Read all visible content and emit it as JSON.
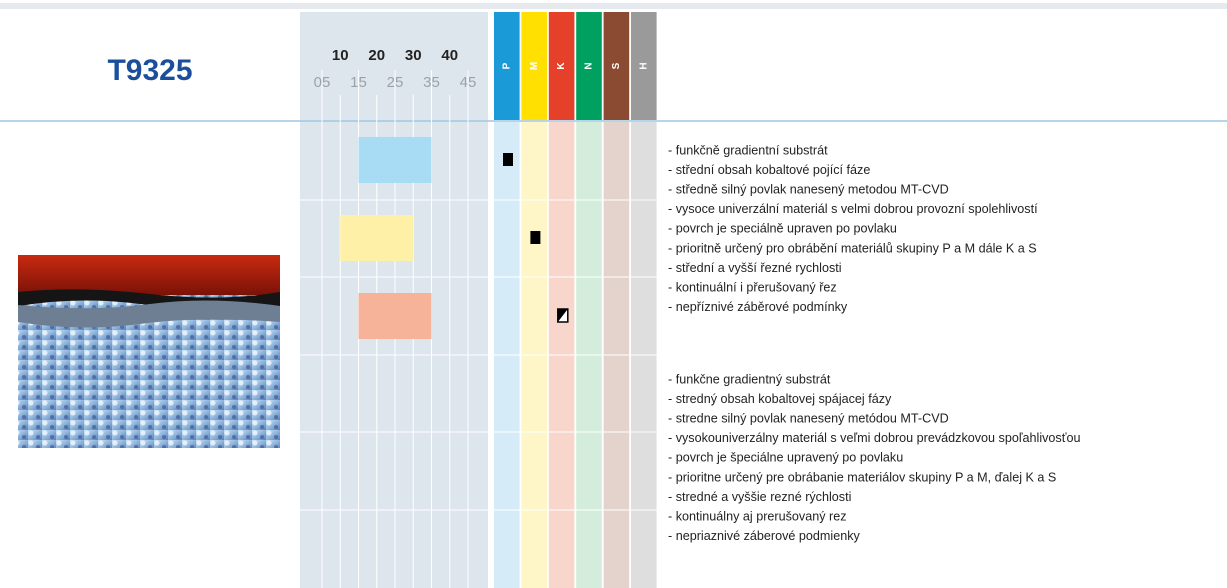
{
  "header": {
    "grade": "T9325",
    "scale": {
      "major": [
        10,
        20,
        30,
        40
      ],
      "minor": [
        {
          "value": 5,
          "label": "05"
        },
        15,
        25,
        35,
        45
      ]
    },
    "iso": [
      {
        "label": "P",
        "color": "#1a9ad6",
        "tint": "#d5ebf8"
      },
      {
        "label": "M",
        "color": "#ffe000",
        "tint": "#fff6c8"
      },
      {
        "label": "K",
        "color": "#e5402a",
        "tint": "#f9d6cc"
      },
      {
        "label": "N",
        "color": "#00a160",
        "tint": "#d3ecdc"
      },
      {
        "label": "S",
        "color": "#8b4a32",
        "tint": "#e4d3cc"
      },
      {
        "label": "H",
        "color": "#9a9a9a",
        "tint": "#dedede"
      }
    ]
  },
  "ranges": [
    {
      "iso": 0,
      "from": 15,
      "to": 35,
      "color": "#a8dcf4",
      "marker": "full"
    },
    {
      "iso": 1,
      "from": 10,
      "to": 30,
      "color": "#fff0a8",
      "marker": "full"
    },
    {
      "iso": 2,
      "from": 15,
      "to": 35,
      "color": "#f6b39a",
      "marker": "half"
    }
  ],
  "text_cz": [
    "- funkčně gradientní substrát",
    "- střední obsah kobaltové pojící fáze",
    "- středně silný povlak nanesený metodou MT-CVD",
    "- vysoce univerzální materiál s velmi dobrou provozní spolehlivostí",
    "- povrch je speciálně upraven po povlaku",
    "- prioritně určený pro obrábění materiálů skupiny P a M dále K a S",
    "- střední a vyšší řezné rychlosti",
    "- kontinuální i přerušovaný řez",
    "- nepříznivé záběrové podmínky"
  ],
  "text_sk": [
    "- funkčne gradientný substrát",
    "- stredný obsah kobaltovej spájacej fázy",
    "- stredne silný povlak nanesený metódou MT-CVD",
    "- vysokouniverzálny materiál s veľmi dobrou prevádzkovou spoľahlivosťou",
    "- povrch je špeciálne upravený po povlaku",
    "- prioritne určený pre obrábanie materiálov skupiny P a M, ďalej K a S",
    "- stredné a vyššie rezné rýchlosti",
    "- kontinuálny aj prerušovaný rez",
    "- nepriaznivé záberové podmienky"
  ]
}
